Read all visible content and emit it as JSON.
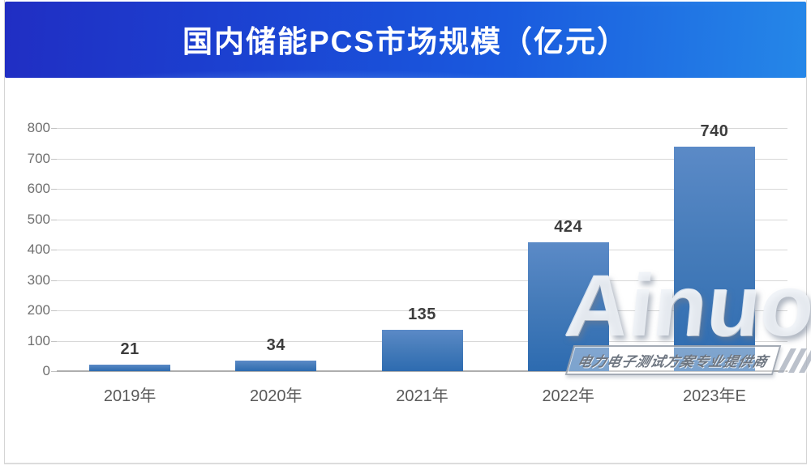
{
  "header": {
    "title": "国内储能PCS市场规模（亿元）"
  },
  "chart_data": {
    "type": "bar",
    "title": "国内储能PCS市场规模（亿元）",
    "categories": [
      "2019年",
      "2020年",
      "2021年",
      "2022年",
      "2023年E"
    ],
    "values": [
      21,
      34,
      135,
      424,
      740
    ],
    "xlabel": "",
    "ylabel": "",
    "ylim": [
      0,
      800
    ],
    "ytick_step": 100,
    "grid": true,
    "legend": "none",
    "bar_color_top": "#5b8ac7",
    "bar_color_bottom": "#2d6bb0"
  },
  "watermark": {
    "brand": "Ainuo",
    "tagline": "电力电子测试方案专业提供商",
    "slash_count": 3
  },
  "colors": {
    "banner_left": "#202ec3",
    "banner_right": "#2587e8",
    "title_text": "#ffffff",
    "grid_line": "#d7d7d7",
    "axis_line": "#aeaeae",
    "ytick_label": "#6f6f6f",
    "category_label": "#595959",
    "value_label": "#3d3d3d"
  }
}
